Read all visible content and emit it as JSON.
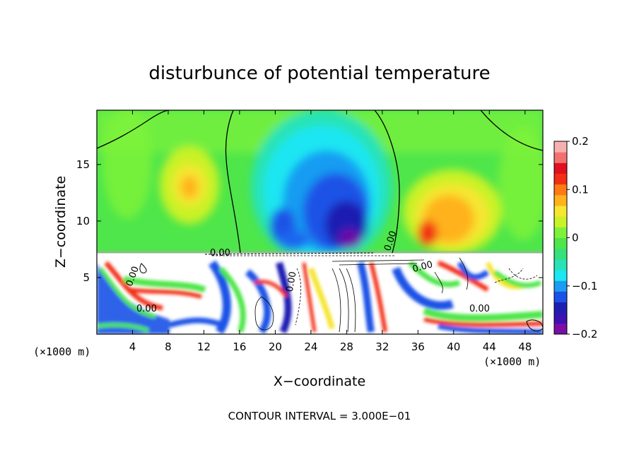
{
  "chart_data": {
    "type": "heatmap",
    "title": "disturbunce of potential temperature",
    "xlabel": "X−coordinate",
    "ylabel": "Z−coordinate",
    "x_unit": "(×1000 m)",
    "y_unit": "(×1000 m)",
    "xlim": [
      0,
      50
    ],
    "ylim": [
      0,
      19.8
    ],
    "x_ticks": [
      4,
      8,
      12,
      16,
      20,
      24,
      28,
      32,
      36,
      40,
      44,
      48
    ],
    "y_ticks": [
      5,
      10,
      15
    ],
    "colorbar": {
      "range": [
        -0.2,
        0.2
      ],
      "ticks": [
        {
          "value": 0.2,
          "label": "0.2"
        },
        {
          "value": 0.1,
          "label": "0.1"
        },
        {
          "value": 0,
          "label": "0"
        },
        {
          "value": -0.1,
          "label": "−0.1"
        },
        {
          "value": -0.2,
          "label": "−0.2"
        }
      ]
    },
    "contour_labels": [
      "0.00",
      "0.00",
      "0.00",
      "0.00",
      "0.00",
      "0.00",
      "0.00"
    ],
    "note": "CONTOUR INTERVAL = 3.000E−01"
  }
}
